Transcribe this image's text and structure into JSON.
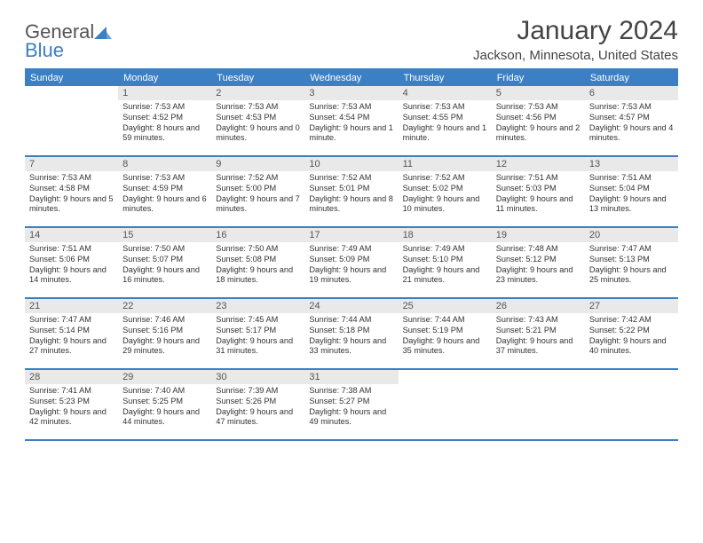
{
  "logo": {
    "text1": "General",
    "text2": "Blue"
  },
  "title": "January 2024",
  "location": "Jackson, Minnesota, United States",
  "colors": {
    "accent": "#3b7fc4",
    "header_bg": "#3b7fc4",
    "daynum_bg": "#e9e9e9",
    "text": "#333333",
    "title_text": "#444444"
  },
  "day_headers": [
    "Sunday",
    "Monday",
    "Tuesday",
    "Wednesday",
    "Thursday",
    "Friday",
    "Saturday"
  ],
  "weeks": [
    [
      {
        "n": "",
        "sunrise": "",
        "sunset": "",
        "daylight": ""
      },
      {
        "n": "1",
        "sunrise": "Sunrise: 7:53 AM",
        "sunset": "Sunset: 4:52 PM",
        "daylight": "Daylight: 8 hours and 59 minutes."
      },
      {
        "n": "2",
        "sunrise": "Sunrise: 7:53 AM",
        "sunset": "Sunset: 4:53 PM",
        "daylight": "Daylight: 9 hours and 0 minutes."
      },
      {
        "n": "3",
        "sunrise": "Sunrise: 7:53 AM",
        "sunset": "Sunset: 4:54 PM",
        "daylight": "Daylight: 9 hours and 1 minute."
      },
      {
        "n": "4",
        "sunrise": "Sunrise: 7:53 AM",
        "sunset": "Sunset: 4:55 PM",
        "daylight": "Daylight: 9 hours and 1 minute."
      },
      {
        "n": "5",
        "sunrise": "Sunrise: 7:53 AM",
        "sunset": "Sunset: 4:56 PM",
        "daylight": "Daylight: 9 hours and 2 minutes."
      },
      {
        "n": "6",
        "sunrise": "Sunrise: 7:53 AM",
        "sunset": "Sunset: 4:57 PM",
        "daylight": "Daylight: 9 hours and 4 minutes."
      }
    ],
    [
      {
        "n": "7",
        "sunrise": "Sunrise: 7:53 AM",
        "sunset": "Sunset: 4:58 PM",
        "daylight": "Daylight: 9 hours and 5 minutes."
      },
      {
        "n": "8",
        "sunrise": "Sunrise: 7:53 AM",
        "sunset": "Sunset: 4:59 PM",
        "daylight": "Daylight: 9 hours and 6 minutes."
      },
      {
        "n": "9",
        "sunrise": "Sunrise: 7:52 AM",
        "sunset": "Sunset: 5:00 PM",
        "daylight": "Daylight: 9 hours and 7 minutes."
      },
      {
        "n": "10",
        "sunrise": "Sunrise: 7:52 AM",
        "sunset": "Sunset: 5:01 PM",
        "daylight": "Daylight: 9 hours and 8 minutes."
      },
      {
        "n": "11",
        "sunrise": "Sunrise: 7:52 AM",
        "sunset": "Sunset: 5:02 PM",
        "daylight": "Daylight: 9 hours and 10 minutes."
      },
      {
        "n": "12",
        "sunrise": "Sunrise: 7:51 AM",
        "sunset": "Sunset: 5:03 PM",
        "daylight": "Daylight: 9 hours and 11 minutes."
      },
      {
        "n": "13",
        "sunrise": "Sunrise: 7:51 AM",
        "sunset": "Sunset: 5:04 PM",
        "daylight": "Daylight: 9 hours and 13 minutes."
      }
    ],
    [
      {
        "n": "14",
        "sunrise": "Sunrise: 7:51 AM",
        "sunset": "Sunset: 5:06 PM",
        "daylight": "Daylight: 9 hours and 14 minutes."
      },
      {
        "n": "15",
        "sunrise": "Sunrise: 7:50 AM",
        "sunset": "Sunset: 5:07 PM",
        "daylight": "Daylight: 9 hours and 16 minutes."
      },
      {
        "n": "16",
        "sunrise": "Sunrise: 7:50 AM",
        "sunset": "Sunset: 5:08 PM",
        "daylight": "Daylight: 9 hours and 18 minutes."
      },
      {
        "n": "17",
        "sunrise": "Sunrise: 7:49 AM",
        "sunset": "Sunset: 5:09 PM",
        "daylight": "Daylight: 9 hours and 19 minutes."
      },
      {
        "n": "18",
        "sunrise": "Sunrise: 7:49 AM",
        "sunset": "Sunset: 5:10 PM",
        "daylight": "Daylight: 9 hours and 21 minutes."
      },
      {
        "n": "19",
        "sunrise": "Sunrise: 7:48 AM",
        "sunset": "Sunset: 5:12 PM",
        "daylight": "Daylight: 9 hours and 23 minutes."
      },
      {
        "n": "20",
        "sunrise": "Sunrise: 7:47 AM",
        "sunset": "Sunset: 5:13 PM",
        "daylight": "Daylight: 9 hours and 25 minutes."
      }
    ],
    [
      {
        "n": "21",
        "sunrise": "Sunrise: 7:47 AM",
        "sunset": "Sunset: 5:14 PM",
        "daylight": "Daylight: 9 hours and 27 minutes."
      },
      {
        "n": "22",
        "sunrise": "Sunrise: 7:46 AM",
        "sunset": "Sunset: 5:16 PM",
        "daylight": "Daylight: 9 hours and 29 minutes."
      },
      {
        "n": "23",
        "sunrise": "Sunrise: 7:45 AM",
        "sunset": "Sunset: 5:17 PM",
        "daylight": "Daylight: 9 hours and 31 minutes."
      },
      {
        "n": "24",
        "sunrise": "Sunrise: 7:44 AM",
        "sunset": "Sunset: 5:18 PM",
        "daylight": "Daylight: 9 hours and 33 minutes."
      },
      {
        "n": "25",
        "sunrise": "Sunrise: 7:44 AM",
        "sunset": "Sunset: 5:19 PM",
        "daylight": "Daylight: 9 hours and 35 minutes."
      },
      {
        "n": "26",
        "sunrise": "Sunrise: 7:43 AM",
        "sunset": "Sunset: 5:21 PM",
        "daylight": "Daylight: 9 hours and 37 minutes."
      },
      {
        "n": "27",
        "sunrise": "Sunrise: 7:42 AM",
        "sunset": "Sunset: 5:22 PM",
        "daylight": "Daylight: 9 hours and 40 minutes."
      }
    ],
    [
      {
        "n": "28",
        "sunrise": "Sunrise: 7:41 AM",
        "sunset": "Sunset: 5:23 PM",
        "daylight": "Daylight: 9 hours and 42 minutes."
      },
      {
        "n": "29",
        "sunrise": "Sunrise: 7:40 AM",
        "sunset": "Sunset: 5:25 PM",
        "daylight": "Daylight: 9 hours and 44 minutes."
      },
      {
        "n": "30",
        "sunrise": "Sunrise: 7:39 AM",
        "sunset": "Sunset: 5:26 PM",
        "daylight": "Daylight: 9 hours and 47 minutes."
      },
      {
        "n": "31",
        "sunrise": "Sunrise: 7:38 AM",
        "sunset": "Sunset: 5:27 PM",
        "daylight": "Daylight: 9 hours and 49 minutes."
      },
      {
        "n": "",
        "sunrise": "",
        "sunset": "",
        "daylight": ""
      },
      {
        "n": "",
        "sunrise": "",
        "sunset": "",
        "daylight": ""
      },
      {
        "n": "",
        "sunrise": "",
        "sunset": "",
        "daylight": ""
      }
    ]
  ]
}
